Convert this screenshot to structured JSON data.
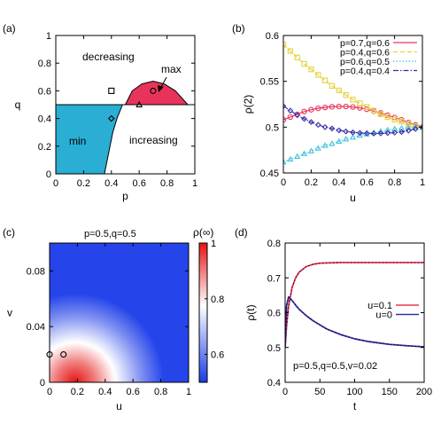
{
  "chart_data": [
    {
      "type": "phase-diagram",
      "panel_label": "(a)",
      "xlabel": "p",
      "ylabel": "q",
      "xlim": [
        0,
        1
      ],
      "ylim": [
        0,
        1
      ],
      "xticks": [
        "0",
        "0.2",
        "0.4",
        "0.6",
        "0.8",
        "1"
      ],
      "yticks": [
        "0",
        "0.2",
        "0.4",
        "0.6",
        "0.8",
        "1"
      ],
      "regions": [
        {
          "label": "decreasing",
          "color": "#ffffff"
        },
        {
          "label": "min",
          "color": "#2aaed4"
        },
        {
          "label": "increasing",
          "color": "#ffffff"
        },
        {
          "label": "max",
          "color": "#e8345a"
        }
      ],
      "boundary_q": 0.5,
      "min_region_boundary": [
        [
          0.35,
          0
        ],
        [
          0.37,
          0.1
        ],
        [
          0.39,
          0.2
        ],
        [
          0.41,
          0.3
        ],
        [
          0.44,
          0.4
        ],
        [
          0.48,
          0.5
        ]
      ],
      "max_region_boundary": [
        [
          0.5,
          0.5
        ],
        [
          0.55,
          0.6
        ],
        [
          0.62,
          0.65
        ],
        [
          0.7,
          0.67
        ],
        [
          0.78,
          0.65
        ],
        [
          0.86,
          0.6
        ],
        [
          0.95,
          0.5
        ]
      ],
      "markers": [
        {
          "shape": "square",
          "x": 0.4,
          "y": 0.6
        },
        {
          "shape": "diamond",
          "x": 0.4,
          "y": 0.4
        },
        {
          "shape": "triangle",
          "x": 0.6,
          "y": 0.5
        },
        {
          "shape": "circle",
          "x": 0.7,
          "y": 0.6
        }
      ]
    },
    {
      "type": "line",
      "panel_label": "(b)",
      "xlabel": "u",
      "ylabel": "ρ(2)",
      "xlim": [
        0,
        1
      ],
      "ylim": [
        0.45,
        0.6
      ],
      "xticks": [
        "0",
        "0.2",
        "0.4",
        "0.6",
        "0.8",
        "1"
      ],
      "yticks": [
        "0.45",
        "0.5",
        "0.55",
        "0.6"
      ],
      "legend": "top-right",
      "x": [
        0,
        0.05,
        0.1,
        0.15,
        0.2,
        0.25,
        0.3,
        0.35,
        0.4,
        0.45,
        0.5,
        0.55,
        0.6,
        0.65,
        0.7,
        0.75,
        0.8,
        0.85,
        0.9,
        0.95,
        1
      ],
      "series": [
        {
          "name": "p=0.7,q=0.6",
          "color": "#e8345a",
          "line": "solid",
          "marker": "circle",
          "values": [
            0.508,
            0.511,
            0.514,
            0.517,
            0.519,
            0.5205,
            0.5215,
            0.5222,
            0.5225,
            0.5225,
            0.522,
            0.521,
            0.5195,
            0.5175,
            0.5155,
            0.513,
            0.5105,
            0.508,
            0.505,
            0.5025,
            0.5
          ]
        },
        {
          "name": "p=0.4,q=0.6",
          "color": "#e6d23a",
          "line": "dashed",
          "marker": "square",
          "values": [
            0.59,
            0.583,
            0.576,
            0.569,
            0.563,
            0.557,
            0.551,
            0.545,
            0.54,
            0.535,
            0.53,
            0.526,
            0.522,
            0.518,
            0.514,
            0.511,
            0.508,
            0.506,
            0.503,
            0.501,
            0.5
          ]
        },
        {
          "name": "p=0.6,q=0.5",
          "color": "#3fc3e0",
          "line": "dotted",
          "marker": "triangle",
          "values": [
            0.462,
            0.465,
            0.468,
            0.471,
            0.474,
            0.477,
            0.48,
            0.482,
            0.4845,
            0.487,
            0.489,
            0.491,
            0.4925,
            0.494,
            0.4955,
            0.497,
            0.498,
            0.4988,
            0.4994,
            0.4998,
            0.5
          ]
        },
        {
          "name": "p=0.4,q=0.4",
          "color": "#3a2fa8",
          "line": "dashdot",
          "marker": "diamond",
          "values": [
            0.523,
            0.518,
            0.513,
            0.509,
            0.5055,
            0.5025,
            0.5,
            0.4985,
            0.4965,
            0.4953,
            0.4943,
            0.4937,
            0.4933,
            0.4931,
            0.4932,
            0.4935,
            0.494,
            0.4948,
            0.4962,
            0.498,
            0.5
          ]
        }
      ]
    },
    {
      "type": "heatmap",
      "panel_label": "(c)",
      "title": "p=0.5,q=0.5",
      "xlabel": "u",
      "ylabel": "v",
      "colorbar_label": "ρ(∞)",
      "xlim": [
        0,
        1
      ],
      "ylim": [
        0,
        0.1
      ],
      "xticks": [
        "0",
        "0.2",
        "0.4",
        "0.6",
        "0.8",
        "1"
      ],
      "yticks": [
        "0",
        "0.04",
        "0.08"
      ],
      "colorbar_ticks": [
        "0.6",
        "0.8",
        "1"
      ],
      "colorbar_range": [
        0.5,
        1
      ],
      "colormap": [
        "#1a3be8",
        "#ffffff",
        "#e61414"
      ],
      "markers": [
        {
          "shape": "circle",
          "x": 0,
          "y": 0.02
        },
        {
          "shape": "circle",
          "x": 0.1,
          "y": 0.02
        }
      ]
    },
    {
      "type": "line",
      "panel_label": "(d)",
      "xlabel": "t",
      "ylabel": "ρ(t)",
      "xlim": [
        0,
        200
      ],
      "ylim": [
        0.4,
        0.8
      ],
      "xticks": [
        "0",
        "50",
        "100",
        "150",
        "200"
      ],
      "yticks": [
        "0.4",
        "0.5",
        "0.6",
        "0.7",
        "0.8"
      ],
      "annotation": "p=0.5,q=0.5,v=0.02",
      "legend": "right",
      "x": [
        0,
        2,
        5,
        10,
        15,
        20,
        30,
        40,
        50,
        60,
        80,
        100,
        120,
        150,
        175,
        200
      ],
      "series": [
        {
          "name": "u=0.1",
          "color": "#e8345a",
          "values": [
            0.5,
            0.56,
            0.62,
            0.672,
            0.7,
            0.716,
            0.732,
            0.739,
            0.742,
            0.743,
            0.744,
            0.744,
            0.744,
            0.744,
            0.744,
            0.744
          ]
        },
        {
          "name": "u=0",
          "color": "#3a2fa8",
          "values": [
            0.5,
            0.62,
            0.645,
            0.635,
            0.622,
            0.61,
            0.592,
            0.577,
            0.565,
            0.553,
            0.537,
            0.525,
            0.517,
            0.509,
            0.505,
            0.502
          ]
        }
      ]
    }
  ]
}
